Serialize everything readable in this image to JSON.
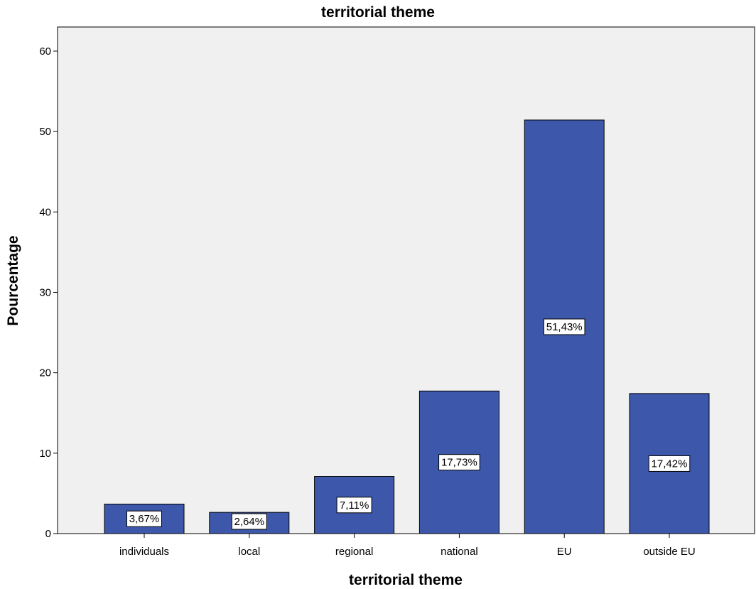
{
  "chart_data": {
    "type": "bar",
    "title": "territorial theme",
    "xlabel": "territorial theme",
    "ylabel": "Pourcentage",
    "categories": [
      "individuals",
      "local",
      "regional",
      "national",
      "EU",
      "outside EU"
    ],
    "values": [
      3.67,
      2.64,
      7.11,
      17.73,
      51.43,
      17.42
    ],
    "data_labels": [
      "3,67%",
      "2,64%",
      "7,11%",
      "17,73%",
      "51,43%",
      "17,42%"
    ],
    "ylim": [
      0,
      63
    ],
    "yticks": [
      0,
      10,
      20,
      30,
      40,
      50,
      60
    ],
    "grid": false,
    "legend": "none",
    "colors": {
      "bar_fill": "#3d58aa",
      "bar_stroke": "#000000",
      "plot_background": "#f0f0f0",
      "label_background": "#ffffff"
    }
  }
}
